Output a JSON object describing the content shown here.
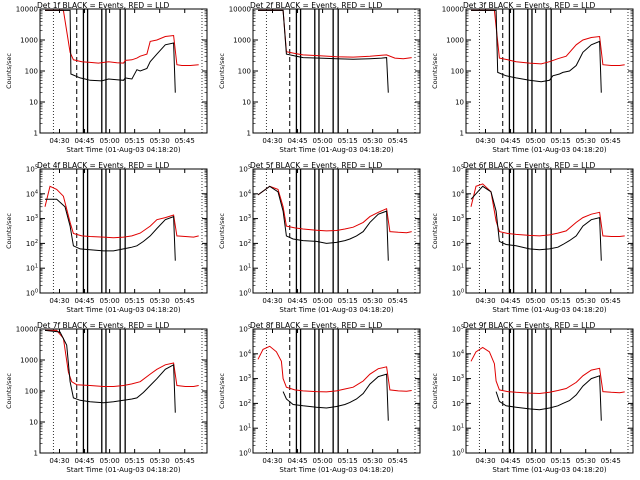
{
  "figure": {
    "xlabel": "Start Time (01-Aug-03 04:18:20)",
    "ylabel": "Counts/sec",
    "xticks": [
      "04:30",
      "04:45",
      "05:00",
      "05:15",
      "05:30",
      "05:45"
    ],
    "xtick_minutes": [
      11.67,
      26.67,
      41.67,
      56.67,
      71.67,
      86.67
    ],
    "xlim_minutes": [
      0,
      100
    ],
    "colors": {
      "events": "#000000",
      "lld": "#e00000"
    }
  },
  "chart_data": [
    {
      "type": "line",
      "title": "Det 1f BLACK = Events, RED = LLD",
      "ylabel": "Counts/sec",
      "xlabel": "Start Time (01-Aug-03 04:18:20)",
      "yscale": "log",
      "ylim": [
        1,
        10000
      ],
      "ytick_labels": [
        "1",
        "10",
        "100",
        "1000",
        "10000"
      ],
      "series": [
        {
          "name": "Events",
          "color": "#000000",
          "x_minutes": [
            3,
            18,
            18.5,
            24,
            27,
            30,
            37,
            41,
            46,
            50,
            51,
            55,
            58,
            60,
            64,
            66,
            70,
            75,
            80,
            81
          ],
          "values": [
            9000,
            9000,
            80,
            60,
            55,
            50,
            48,
            55,
            52,
            50,
            60,
            55,
            110,
            100,
            120,
            200,
            350,
            700,
            800,
            20
          ]
        },
        {
          "name": "LLD",
          "color": "#e00000",
          "x_minutes": [
            3,
            14,
            18,
            20,
            25,
            30,
            35,
            41,
            46,
            50,
            51,
            55,
            58,
            60,
            64,
            66,
            70,
            75,
            80,
            82,
            85,
            90,
            95
          ],
          "values": [
            9000,
            9000,
            400,
            230,
            200,
            190,
            180,
            200,
            185,
            180,
            220,
            230,
            260,
            300,
            350,
            900,
            1000,
            1300,
            1400,
            160,
            150,
            150,
            160
          ]
        }
      ]
    },
    {
      "type": "line",
      "title": "Det 2f BLACK = Events, RED = LLD",
      "ylabel": "Counts/sec",
      "xlabel": "Start Time (01-Aug-03 04:18:20)",
      "yscale": "log",
      "ylim": [
        1,
        10000
      ],
      "ytick_labels": [
        "1",
        "10",
        "100",
        "1000",
        "10000"
      ],
      "series": [
        {
          "name": "Events",
          "color": "#000000",
          "x_minutes": [
            3,
            18,
            20,
            26,
            30,
            40,
            50,
            60,
            70,
            77,
            80,
            81
          ],
          "values": [
            9000,
            9000,
            350,
            300,
            270,
            260,
            250,
            240,
            250,
            260,
            270,
            20
          ]
        },
        {
          "name": "LLD",
          "color": "#e00000",
          "x_minutes": [
            3,
            18,
            20,
            26,
            30,
            40,
            50,
            60,
            70,
            77,
            80,
            85,
            90,
            95
          ],
          "values": [
            9000,
            9000,
            420,
            360,
            330,
            310,
            290,
            280,
            300,
            320,
            330,
            260,
            250,
            270
          ]
        }
      ]
    },
    {
      "type": "line",
      "title": "Det 3f BLACK = Events, RED = LLD",
      "ylabel": "Counts/sec",
      "xlabel": "Start Time (01-Aug-03 04:18:20)",
      "yscale": "log",
      "ylim": [
        1,
        10000
      ],
      "ytick_labels": [
        "1",
        "10",
        "100",
        "1000",
        "10000"
      ],
      "series": [
        {
          "name": "Events",
          "color": "#000000",
          "x_minutes": [
            3,
            18,
            19,
            24,
            30,
            38,
            45,
            50,
            52,
            56,
            58,
            62,
            66,
            70,
            75,
            80,
            81
          ],
          "values": [
            9000,
            9000,
            90,
            70,
            60,
            50,
            45,
            50,
            70,
            80,
            90,
            100,
            150,
            400,
            700,
            900,
            20
          ]
        },
        {
          "name": "LLD",
          "color": "#e00000",
          "x_minutes": [
            3,
            17,
            20,
            25,
            30,
            38,
            45,
            50,
            55,
            60,
            66,
            70,
            75,
            80,
            82,
            87,
            92,
            95
          ],
          "values": [
            9000,
            9000,
            260,
            230,
            200,
            180,
            170,
            200,
            250,
            300,
            700,
            1000,
            1200,
            1300,
            160,
            150,
            150,
            160
          ]
        }
      ]
    },
    {
      "type": "line",
      "title": "Det 4f BLACK = Events, RED = LLD",
      "ylabel": "Counts/sec",
      "xlabel": "Start Time (01-Aug-03 04:18:20)",
      "yscale": "log",
      "ylim": [
        1,
        100000
      ],
      "ytick_labels": [
        "10^0",
        "10^1",
        "10^2",
        "10^3",
        "10^4",
        "10^5"
      ],
      "series": [
        {
          "name": "Events",
          "color": "#000000",
          "x_minutes": [
            3,
            10,
            15,
            18,
            20,
            24,
            30,
            38,
            44,
            50,
            55,
            58,
            62,
            66,
            70,
            75,
            80,
            81
          ],
          "values": [
            6000,
            6000,
            3000,
            500,
            80,
            60,
            55,
            50,
            50,
            60,
            70,
            80,
            120,
            200,
            400,
            900,
            1200,
            20
          ]
        },
        {
          "name": "LLD",
          "color": "#e00000",
          "x_minutes": [
            3,
            6,
            10,
            14,
            18,
            20,
            25,
            30,
            38,
            44,
            50,
            55,
            60,
            66,
            70,
            75,
            80,
            82,
            87,
            92,
            95
          ],
          "values": [
            3000,
            20000,
            15000,
            8000,
            700,
            250,
            200,
            190,
            180,
            170,
            180,
            200,
            260,
            500,
            900,
            1100,
            1400,
            200,
            190,
            180,
            200
          ]
        }
      ]
    },
    {
      "type": "line",
      "title": "Det 5f BLACK = Events, RED = LLD",
      "ylabel": "Counts/sec",
      "xlabel": "Start Time (01-Aug-03 04:18:20)",
      "yscale": "log",
      "ylim": [
        1,
        100000
      ],
      "ytick_labels": [
        "10^0",
        "10^1",
        "10^2",
        "10^3",
        "10^4",
        "10^5"
      ],
      "series": [
        {
          "name": "Events",
          "color": "#000000",
          "x_minutes": [
            3,
            10,
            15,
            18,
            20,
            24,
            30,
            38,
            44,
            50,
            55,
            58,
            62,
            66,
            70,
            75,
            80,
            81
          ],
          "values": [
            9000,
            20000,
            12000,
            2000,
            200,
            150,
            130,
            120,
            100,
            110,
            130,
            150,
            200,
            300,
            700,
            1500,
            2000,
            20
          ]
        },
        {
          "name": "LLD",
          "color": "#e00000",
          "x_minutes": [
            3,
            10,
            15,
            18,
            20,
            25,
            30,
            38,
            44,
            50,
            55,
            60,
            66,
            70,
            75,
            80,
            82,
            87,
            92,
            95
          ],
          "values": [
            9000,
            20000,
            15000,
            3000,
            500,
            420,
            380,
            340,
            320,
            330,
            380,
            450,
            700,
            1200,
            1800,
            2500,
            300,
            280,
            270,
            300
          ]
        }
      ]
    },
    {
      "type": "line",
      "title": "Det 6f BLACK = Events, RED = LLD",
      "ylabel": "Counts/sec",
      "xlabel": "Start Time (01-Aug-03 04:18:20)",
      "yscale": "log",
      "ylim": [
        1,
        100000
      ],
      "ytick_labels": [
        "10^0",
        "10^1",
        "10^2",
        "10^3",
        "10^4",
        "10^5"
      ],
      "series": [
        {
          "name": "Events",
          "color": "#000000",
          "x_minutes": [
            3,
            10,
            15,
            18,
            20,
            24,
            30,
            38,
            44,
            50,
            55,
            58,
            62,
            66,
            70,
            75,
            80,
            81
          ],
          "values": [
            6000,
            20000,
            12000,
            2000,
            120,
            90,
            80,
            60,
            55,
            60,
            70,
            90,
            130,
            200,
            500,
            900,
            1100,
            20
          ]
        },
        {
          "name": "LLD",
          "color": "#e00000",
          "x_minutes": [
            3,
            6,
            10,
            15,
            18,
            20,
            25,
            30,
            38,
            44,
            50,
            55,
            60,
            66,
            70,
            75,
            80,
            82,
            87,
            92,
            95
          ],
          "values": [
            3000,
            20000,
            25000,
            12000,
            800,
            300,
            250,
            230,
            210,
            200,
            220,
            260,
            320,
            700,
            1100,
            1500,
            1800,
            200,
            190,
            190,
            200
          ]
        }
      ]
    },
    {
      "type": "line",
      "title": "Det 7f BLACK = Events, RED = LLD",
      "ylabel": "Counts/sec",
      "xlabel": "Start Time (01-Aug-03 04:18:20)",
      "yscale": "log",
      "ylim": [
        1,
        10000
      ],
      "ytick_labels": [
        "1",
        "10",
        "100",
        "1000",
        "10000"
      ],
      "series": [
        {
          "name": "Events",
          "color": "#000000",
          "x_minutes": [
            3,
            12,
            16,
            18,
            20,
            24,
            30,
            38,
            44,
            50,
            55,
            58,
            62,
            66,
            70,
            75,
            80,
            81
          ],
          "values": [
            9000,
            8000,
            3000,
            200,
            60,
            50,
            45,
            42,
            45,
            50,
            55,
            60,
            90,
            150,
            250,
            500,
            700,
            20
          ]
        },
        {
          "name": "LLD",
          "color": "#e00000",
          "x_minutes": [
            3,
            10,
            14,
            17,
            19,
            22,
            30,
            38,
            44,
            50,
            55,
            60,
            66,
            70,
            75,
            80,
            82,
            87,
            92,
            95
          ],
          "values": [
            9000,
            9000,
            5000,
            400,
            200,
            160,
            150,
            140,
            140,
            150,
            170,
            200,
            350,
            500,
            700,
            800,
            150,
            140,
            140,
            150
          ]
        }
      ]
    },
    {
      "type": "line",
      "title": "Det 8f BLACK = Events, RED = LLD",
      "ylabel": "Counts/sec",
      "xlabel": "Start Time (01-Aug-03 04:18:20)",
      "yscale": "log",
      "ylim": [
        1,
        100000
      ],
      "ytick_labels": [
        "10^0",
        "10^1",
        "10^2",
        "10^3",
        "10^4",
        "10^5"
      ],
      "series": [
        {
          "name": "Events",
          "color": "#000000",
          "x_minutes": [
            18,
            20,
            24,
            30,
            38,
            44,
            50,
            55,
            58,
            62,
            66,
            70,
            75,
            80,
            81
          ],
          "values": [
            300,
            150,
            90,
            80,
            70,
            65,
            75,
            90,
            110,
            150,
            250,
            600,
            1200,
            1500,
            20
          ]
        },
        {
          "name": "LLD",
          "color": "#e00000",
          "x_minutes": [
            3,
            6,
            10,
            14,
            17,
            18,
            20,
            25,
            30,
            38,
            44,
            50,
            55,
            60,
            66,
            70,
            75,
            80,
            82,
            87,
            92,
            95
          ],
          "values": [
            6000,
            15000,
            20000,
            12000,
            5000,
            1000,
            450,
            350,
            320,
            300,
            290,
            320,
            380,
            450,
            800,
            1500,
            2500,
            3000,
            350,
            320,
            310,
            330
          ]
        }
      ]
    },
    {
      "type": "line",
      "title": "Det 9f BLACK = Events, RED = LLD",
      "ylabel": "Counts/sec",
      "xlabel": "Start Time (01-Aug-03 04:18:20)",
      "yscale": "log",
      "ylim": [
        1,
        100000
      ],
      "ytick_labels": [
        "10^0",
        "10^1",
        "10^2",
        "10^3",
        "10^4",
        "10^5"
      ],
      "series": [
        {
          "name": "Events",
          "color": "#000000",
          "x_minutes": [
            18,
            20,
            24,
            30,
            38,
            44,
            50,
            55,
            58,
            62,
            66,
            70,
            75,
            80,
            81
          ],
          "values": [
            300,
            120,
            80,
            70,
            60,
            55,
            65,
            80,
            100,
            130,
            220,
            500,
            1000,
            1300,
            20
          ]
        },
        {
          "name": "LLD",
          "color": "#e00000",
          "x_minutes": [
            3,
            6,
            10,
            14,
            17,
            18,
            20,
            25,
            30,
            38,
            44,
            50,
            55,
            60,
            66,
            70,
            75,
            80,
            82,
            87,
            92,
            95
          ],
          "values": [
            5000,
            12000,
            18000,
            12000,
            4000,
            800,
            350,
            300,
            280,
            260,
            250,
            280,
            330,
            400,
            700,
            1300,
            2200,
            2600,
            300,
            280,
            270,
            290
          ]
        }
      ]
    }
  ]
}
